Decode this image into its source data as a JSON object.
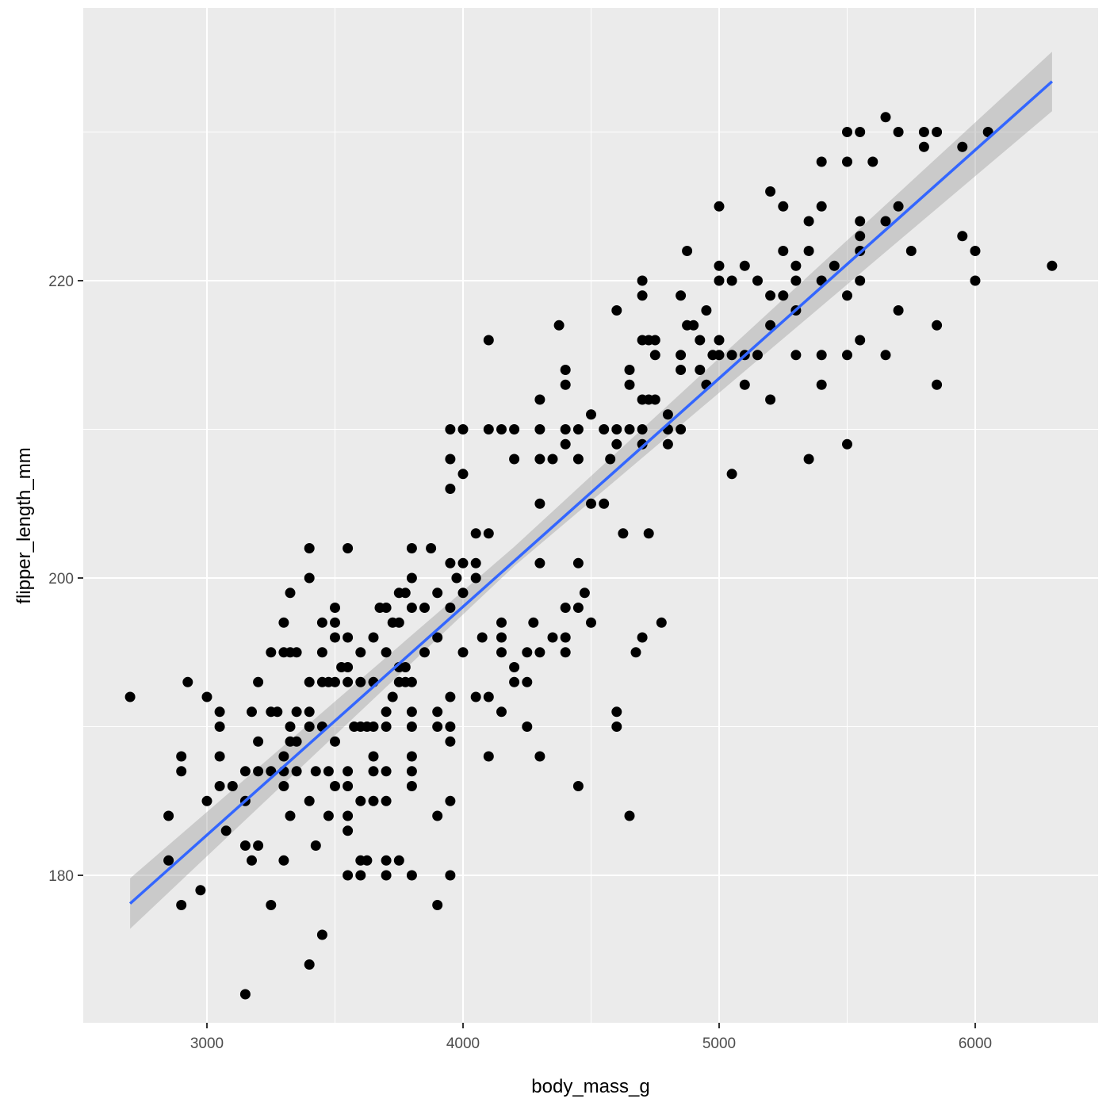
{
  "chart_data": {
    "type": "scatter",
    "title": "",
    "xlabel": "body_mass_g",
    "ylabel": "flipper_length_mm",
    "xlim": [
      2520,
      6480
    ],
    "ylim": [
      169,
      237.5
    ],
    "x_ticks": [
      3000,
      4000,
      5000,
      6000
    ],
    "x_tick_labels": [
      "3000",
      "4000",
      "5000",
      "6000"
    ],
    "y_ticks": [
      180,
      200,
      220
    ],
    "y_tick_labels": [
      "180",
      "200",
      "220"
    ],
    "grid": true,
    "legend": "none",
    "point_color": "#000000",
    "fit": {
      "method": "lm",
      "color": "#3366FF",
      "band_color": "#999999",
      "line": [
        [
          2700,
          178.1
        ],
        [
          6300,
          233.4
        ]
      ],
      "band_lower": [
        [
          2700,
          176.4
        ],
        [
          4200,
          200.8
        ],
        [
          6300,
          231.4
        ]
      ],
      "band_upper": [
        [
          2700,
          179.8
        ],
        [
          4200,
          202.1
        ],
        [
          6300,
          235.4
        ]
      ]
    },
    "points": [
      [
        2700,
        192
      ],
      [
        2850,
        184
      ],
      [
        2850,
        181
      ],
      [
        2900,
        188
      ],
      [
        2900,
        187
      ],
      [
        2900,
        178
      ],
      [
        2925,
        193
      ],
      [
        2975,
        179
      ],
      [
        3000,
        192
      ],
      [
        3000,
        185
      ],
      [
        3050,
        191
      ],
      [
        3050,
        190
      ],
      [
        3050,
        188
      ],
      [
        3050,
        186
      ],
      [
        3075,
        183
      ],
      [
        3100,
        186
      ],
      [
        3150,
        187
      ],
      [
        3150,
        185
      ],
      [
        3150,
        182
      ],
      [
        3150,
        172
      ],
      [
        3175,
        191
      ],
      [
        3175,
        181
      ],
      [
        3200,
        193
      ],
      [
        3200,
        189
      ],
      [
        3200,
        187
      ],
      [
        3200,
        182
      ],
      [
        3250,
        195
      ],
      [
        3250,
        191
      ],
      [
        3250,
        187
      ],
      [
        3250,
        178
      ],
      [
        3275,
        191
      ],
      [
        3300,
        197
      ],
      [
        3300,
        195
      ],
      [
        3300,
        188
      ],
      [
        3300,
        187
      ],
      [
        3300,
        186
      ],
      [
        3300,
        181
      ],
      [
        3325,
        199
      ],
      [
        3325,
        195
      ],
      [
        3325,
        190
      ],
      [
        3325,
        189
      ],
      [
        3325,
        184
      ],
      [
        3350,
        195
      ],
      [
        3350,
        191
      ],
      [
        3350,
        189
      ],
      [
        3350,
        187
      ],
      [
        3400,
        202
      ],
      [
        3400,
        200
      ],
      [
        3400,
        193
      ],
      [
        3400,
        191
      ],
      [
        3400,
        190
      ],
      [
        3400,
        185
      ],
      [
        3400,
        174
      ],
      [
        3425,
        187
      ],
      [
        3425,
        182
      ],
      [
        3450,
        197
      ],
      [
        3450,
        195
      ],
      [
        3450,
        193
      ],
      [
        3450,
        190
      ],
      [
        3450,
        176
      ],
      [
        3475,
        193
      ],
      [
        3475,
        184
      ],
      [
        3475,
        187
      ],
      [
        3500,
        198
      ],
      [
        3500,
        197
      ],
      [
        3500,
        196
      ],
      [
        3500,
        193
      ],
      [
        3500,
        189
      ],
      [
        3500,
        186
      ],
      [
        3525,
        194
      ],
      [
        3550,
        202
      ],
      [
        3550,
        196
      ],
      [
        3550,
        194
      ],
      [
        3550,
        193
      ],
      [
        3550,
        187
      ],
      [
        3550,
        186
      ],
      [
        3550,
        184
      ],
      [
        3550,
        183
      ],
      [
        3550,
        180
      ],
      [
        3575,
        190
      ],
      [
        3600,
        195
      ],
      [
        3600,
        193
      ],
      [
        3600,
        190
      ],
      [
        3600,
        185
      ],
      [
        3600,
        181
      ],
      [
        3600,
        180
      ],
      [
        3625,
        190
      ],
      [
        3625,
        181
      ],
      [
        3650,
        196
      ],
      [
        3650,
        193
      ],
      [
        3650,
        190
      ],
      [
        3650,
        188
      ],
      [
        3650,
        187
      ],
      [
        3650,
        185
      ],
      [
        3675,
        198
      ],
      [
        3700,
        198
      ],
      [
        3700,
        195
      ],
      [
        3700,
        191
      ],
      [
        3700,
        190
      ],
      [
        3700,
        187
      ],
      [
        3700,
        185
      ],
      [
        3700,
        181
      ],
      [
        3700,
        180
      ],
      [
        3725,
        197
      ],
      [
        3725,
        192
      ],
      [
        3750,
        199
      ],
      [
        3750,
        197
      ],
      [
        3750,
        194
      ],
      [
        3750,
        193
      ],
      [
        3750,
        181
      ],
      [
        3775,
        199
      ],
      [
        3775,
        194
      ],
      [
        3775,
        193
      ],
      [
        3800,
        202
      ],
      [
        3800,
        200
      ],
      [
        3800,
        198
      ],
      [
        3800,
        193
      ],
      [
        3800,
        191
      ],
      [
        3800,
        190
      ],
      [
        3800,
        188
      ],
      [
        3800,
        187
      ],
      [
        3800,
        186
      ],
      [
        3800,
        180
      ],
      [
        3850,
        198
      ],
      [
        3850,
        195
      ],
      [
        3875,
        202
      ],
      [
        3900,
        199
      ],
      [
        3900,
        196
      ],
      [
        3900,
        191
      ],
      [
        3900,
        190
      ],
      [
        3900,
        184
      ],
      [
        3900,
        178
      ],
      [
        3950,
        210
      ],
      [
        3950,
        208
      ],
      [
        3950,
        206
      ],
      [
        3950,
        201
      ],
      [
        3950,
        198
      ],
      [
        3950,
        192
      ],
      [
        3950,
        190
      ],
      [
        3950,
        189
      ],
      [
        3950,
        185
      ],
      [
        3950,
        180
      ],
      [
        3975,
        200
      ],
      [
        4000,
        210
      ],
      [
        4000,
        207
      ],
      [
        4000,
        201
      ],
      [
        4000,
        199
      ],
      [
        4000,
        195
      ],
      [
        4050,
        203
      ],
      [
        4050,
        201
      ],
      [
        4050,
        200
      ],
      [
        4050,
        192
      ],
      [
        4075,
        196
      ],
      [
        4100,
        216
      ],
      [
        4100,
        210
      ],
      [
        4100,
        203
      ],
      [
        4100,
        192
      ],
      [
        4100,
        188
      ],
      [
        4150,
        210
      ],
      [
        4150,
        197
      ],
      [
        4150,
        196
      ],
      [
        4150,
        195
      ],
      [
        4150,
        191
      ],
      [
        4200,
        210
      ],
      [
        4200,
        208
      ],
      [
        4200,
        194
      ],
      [
        4200,
        193
      ],
      [
        4250,
        195
      ],
      [
        4250,
        193
      ],
      [
        4250,
        190
      ],
      [
        4275,
        197
      ],
      [
        4300,
        212
      ],
      [
        4300,
        210
      ],
      [
        4300,
        208
      ],
      [
        4300,
        205
      ],
      [
        4300,
        201
      ],
      [
        4300,
        195
      ],
      [
        4300,
        188
      ],
      [
        4350,
        208
      ],
      [
        4350,
        196
      ],
      [
        4375,
        217
      ],
      [
        4400,
        214
      ],
      [
        4400,
        213
      ],
      [
        4400,
        210
      ],
      [
        4400,
        209
      ],
      [
        4400,
        198
      ],
      [
        4400,
        196
      ],
      [
        4400,
        195
      ],
      [
        4450,
        210
      ],
      [
        4450,
        208
      ],
      [
        4450,
        201
      ],
      [
        4450,
        198
      ],
      [
        4450,
        186
      ],
      [
        4475,
        199
      ],
      [
        4500,
        211
      ],
      [
        4500,
        205
      ],
      [
        4500,
        197
      ],
      [
        4550,
        210
      ],
      [
        4550,
        205
      ],
      [
        4575,
        208
      ],
      [
        4600,
        218
      ],
      [
        4600,
        210
      ],
      [
        4600,
        209
      ],
      [
        4600,
        191
      ],
      [
        4600,
        190
      ],
      [
        4625,
        203
      ],
      [
        4650,
        214
      ],
      [
        4650,
        213
      ],
      [
        4650,
        210
      ],
      [
        4650,
        184
      ],
      [
        4675,
        195
      ],
      [
        4700,
        220
      ],
      [
        4700,
        219
      ],
      [
        4700,
        216
      ],
      [
        4700,
        212
      ],
      [
        4700,
        210
      ],
      [
        4700,
        209
      ],
      [
        4700,
        196
      ],
      [
        4725,
        216
      ],
      [
        4725,
        212
      ],
      [
        4725,
        203
      ],
      [
        4750,
        216
      ],
      [
        4750,
        215
      ],
      [
        4750,
        212
      ],
      [
        4775,
        197
      ],
      [
        4800,
        211
      ],
      [
        4800,
        210
      ],
      [
        4800,
        209
      ],
      [
        4850,
        219
      ],
      [
        4850,
        215
      ],
      [
        4850,
        214
      ],
      [
        4850,
        210
      ],
      [
        4875,
        222
      ],
      [
        4875,
        217
      ],
      [
        4900,
        217
      ],
      [
        4925,
        216
      ],
      [
        4925,
        214
      ],
      [
        4950,
        218
      ],
      [
        4950,
        213
      ],
      [
        4975,
        215
      ],
      [
        5000,
        225
      ],
      [
        5000,
        221
      ],
      [
        5000,
        220
      ],
      [
        5000,
        216
      ],
      [
        5000,
        215
      ],
      [
        5050,
        220
      ],
      [
        5050,
        215
      ],
      [
        5050,
        207
      ],
      [
        5100,
        221
      ],
      [
        5100,
        215
      ],
      [
        5100,
        213
      ],
      [
        5150,
        220
      ],
      [
        5150,
        215
      ],
      [
        5200,
        226
      ],
      [
        5200,
        219
      ],
      [
        5200,
        217
      ],
      [
        5200,
        212
      ],
      [
        5250,
        225
      ],
      [
        5250,
        222
      ],
      [
        5250,
        219
      ],
      [
        5300,
        221
      ],
      [
        5300,
        220
      ],
      [
        5300,
        218
      ],
      [
        5300,
        215
      ],
      [
        5350,
        224
      ],
      [
        5350,
        222
      ],
      [
        5350,
        208
      ],
      [
        5400,
        228
      ],
      [
        5400,
        225
      ],
      [
        5400,
        220
      ],
      [
        5400,
        215
      ],
      [
        5400,
        213
      ],
      [
        5450,
        221
      ],
      [
        5500,
        230
      ],
      [
        5500,
        228
      ],
      [
        5500,
        219
      ],
      [
        5500,
        215
      ],
      [
        5500,
        209
      ],
      [
        5550,
        230
      ],
      [
        5550,
        224
      ],
      [
        5550,
        223
      ],
      [
        5550,
        222
      ],
      [
        5550,
        220
      ],
      [
        5550,
        216
      ],
      [
        5600,
        228
      ],
      [
        5650,
        231
      ],
      [
        5650,
        224
      ],
      [
        5650,
        215
      ],
      [
        5700,
        230
      ],
      [
        5700,
        225
      ],
      [
        5700,
        218
      ],
      [
        5750,
        222
      ],
      [
        5800,
        230
      ],
      [
        5800,
        229
      ],
      [
        5850,
        230
      ],
      [
        5850,
        217
      ],
      [
        5850,
        213
      ],
      [
        5950,
        229
      ],
      [
        5950,
        223
      ],
      [
        6000,
        222
      ],
      [
        6000,
        220
      ],
      [
        6050,
        230
      ],
      [
        6300,
        221
      ]
    ]
  }
}
